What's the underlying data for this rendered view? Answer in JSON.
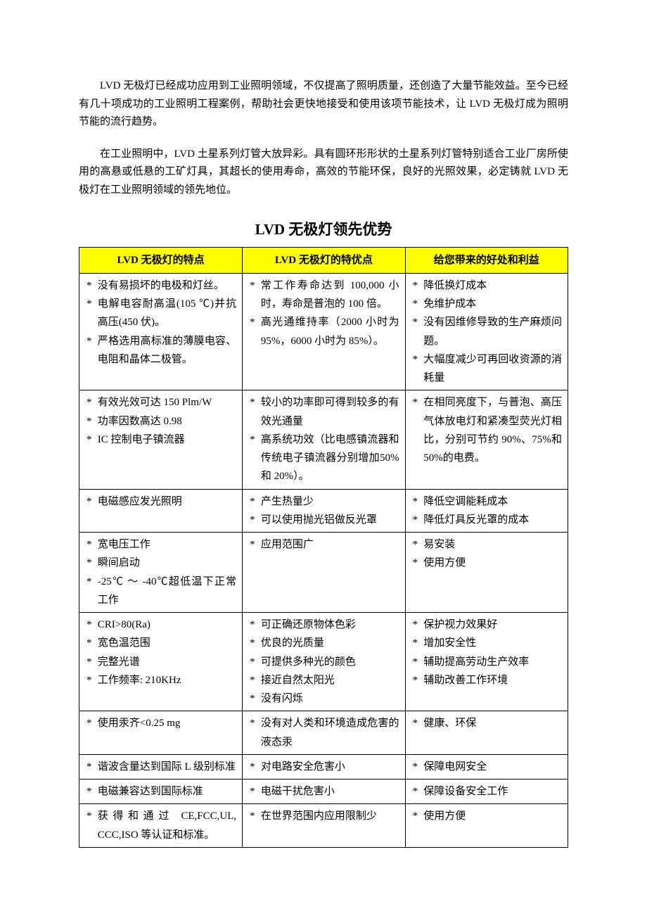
{
  "intro": {
    "p1": "LVD 无极灯已经成功应用到工业照明领域，不仅提高了照明质量，还创造了大量节能效益。至今已经有几十项成功的工业照明工程案例，帮助社会更快地接受和使用该项节能技术，让 LVD 无极灯成为照明节能的流行趋势。",
    "p2": "在工业照明中，LVD 土星系列灯管大放异彩。具有圆环形形状的土星系列灯管特别适合工业厂房所使用的高悬或低悬的工矿灯具，其超长的使用寿命，高效的节能环保，良好的光照效果，必定铸就 LVD 无极灯在工业照明领域的领先地位。"
  },
  "table": {
    "title": "LVD 无极灯领先优势",
    "header_bg": "#ffff00",
    "border_color": "#000000",
    "col_widths": [
      "33.4%",
      "33.3%",
      "33.3%"
    ],
    "headers": [
      "LVD 无极灯的特点",
      "LVD 无极灯的特优点",
      "给您带来的好处和利益"
    ],
    "rows": [
      {
        "c1": [
          "没有易损坏的电极和灯丝。",
          "电解电容耐高温(105 ℃)并抗高压(450 伏)。",
          "严格选用高标准的薄膜电容、电阻和晶体二极管。"
        ],
        "c2": [
          "常工作寿命达到 100,000 小时，寿命是普泡的 100 倍。",
          "高光通维持率（2000 小时为95%，6000 小时为 85%）。"
        ],
        "c3": [
          "降低换灯成本",
          "免维护成本",
          "没有因维修导致的生产麻烦问题。",
          "大幅度减少可再回收资源的消耗量"
        ]
      },
      {
        "c1": [
          "有效光效可达 150 Plm/W",
          "功率因数高达 0.98",
          "IC 控制电子镇流器"
        ],
        "c2": [
          "较小的功率即可得到较多的有效光通量",
          "高系统功效（比电感镇流器和传统电子镇流器分别增加50% 和 20%）。"
        ],
        "c3": [
          "在相同亮度下，与普泡、高压气体放电灯和紧凑型荧光灯相比，分别可节约 90%、75%和 50%的电费。"
        ]
      },
      {
        "c1": [
          "电磁感应发光照明"
        ],
        "c2": [
          "产生热量少",
          "可以使用抛光铝做反光罩"
        ],
        "c3": [
          "降低空调能耗成本",
          "降低灯具反光罩的成本"
        ]
      },
      {
        "c1": [
          "宽电压工作",
          "瞬间启动",
          "-25℃ ～ -40℃超低温下正常工作"
        ],
        "c2": [
          " 应用范围广"
        ],
        "c3": [
          "易安装",
          "使用方便"
        ]
      },
      {
        "c1": [
          "CRI>80(Ra)",
          "宽色温范围",
          "完整光谱",
          "工作频率: 210KHz"
        ],
        "c2": [
          "可正确还原物体色彩",
          "优良的光质量",
          "可提供多种光的颜色",
          "接近自然太阳光",
          "没有闪烁"
        ],
        "c3": [
          "保护视力效果好",
          "增加安全性",
          "辅助提高劳动生产效率",
          "辅助改善工作环境"
        ]
      },
      {
        "c1": [
          "使用汞齐<0.25 mg"
        ],
        "c2": [
          "没有对人类和环境造成危害的液态汞"
        ],
        "c3": [
          "健康、环保"
        ]
      },
      {
        "c1": [
          "谐波含量达到国际 L 级别标准"
        ],
        "c2": [
          "对电路安全危害小"
        ],
        "c3": [
          "保障电网安全"
        ]
      },
      {
        "c1": [
          "电磁兼容达到国际标准"
        ],
        "c2": [
          "电磁干扰危害小"
        ],
        "c3": [
          "保障设备安全工作"
        ]
      },
      {
        "c1": [
          "获得和通过 CE,FCC,UL, CCC,ISO 等认证和标准。"
        ],
        "c2": [
          "在世界范围内应用限制少"
        ],
        "c3": [
          "使用方便"
        ]
      }
    ]
  }
}
